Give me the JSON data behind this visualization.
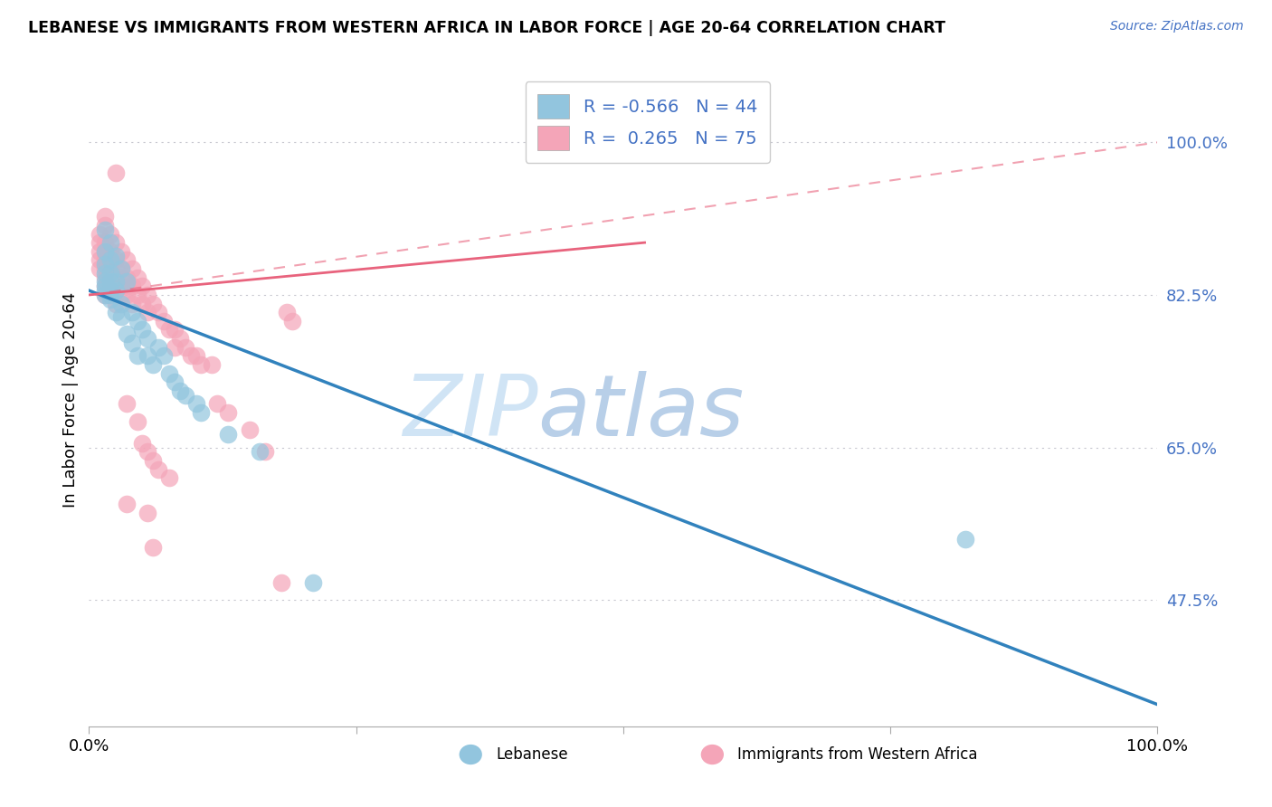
{
  "title": "LEBANESE VS IMMIGRANTS FROM WESTERN AFRICA IN LABOR FORCE | AGE 20-64 CORRELATION CHART",
  "source": "Source: ZipAtlas.com",
  "ylabel": "In Labor Force | Age 20-64",
  "xlim": [
    0,
    100
  ],
  "ylim": [
    33,
    108
  ],
  "yticks": [
    47.5,
    65.0,
    82.5,
    100.0
  ],
  "ytick_labels": [
    "47.5%",
    "65.0%",
    "82.5%",
    "100.0%"
  ],
  "xticks": [
    0,
    25,
    50,
    75,
    100
  ],
  "xtick_labels": [
    "0.0%",
    "",
    "",
    "",
    "100.0%"
  ],
  "legend_r_blue": "-0.566",
  "legend_n_blue": "44",
  "legend_r_pink": "0.265",
  "legend_n_pink": "75",
  "legend_label_blue": "Lebanese",
  "legend_label_pink": "Immigrants from Western Africa",
  "blue_color": "#92c5de",
  "pink_color": "#f4a5b8",
  "trend_blue_color": "#3182bd",
  "trend_pink_color": "#e8637d",
  "watermark_zip": "ZIP",
  "watermark_atlas": "atlas",
  "watermark_color": "#c6dbef",
  "background_color": "#ffffff",
  "blue_scatter": [
    [
      1.5,
      90.0
    ],
    [
      1.5,
      87.5
    ],
    [
      1.5,
      86.0
    ],
    [
      1.5,
      85.0
    ],
    [
      1.5,
      84.0
    ],
    [
      1.5,
      83.5
    ],
    [
      1.5,
      83.0
    ],
    [
      1.5,
      82.5
    ],
    [
      2.0,
      88.5
    ],
    [
      2.0,
      86.5
    ],
    [
      2.0,
      85.0
    ],
    [
      2.0,
      84.0
    ],
    [
      2.0,
      83.0
    ],
    [
      2.0,
      82.5
    ],
    [
      2.0,
      82.0
    ],
    [
      2.5,
      87.0
    ],
    [
      2.5,
      84.0
    ],
    [
      2.5,
      83.0
    ],
    [
      2.5,
      80.5
    ],
    [
      3.0,
      85.5
    ],
    [
      3.0,
      81.5
    ],
    [
      3.0,
      80.0
    ],
    [
      3.5,
      84.0
    ],
    [
      3.5,
      78.0
    ],
    [
      4.0,
      80.5
    ],
    [
      4.0,
      77.0
    ],
    [
      4.5,
      79.5
    ],
    [
      4.5,
      75.5
    ],
    [
      5.0,
      78.5
    ],
    [
      5.5,
      77.5
    ],
    [
      5.5,
      75.5
    ],
    [
      6.0,
      74.5
    ],
    [
      6.5,
      76.5
    ],
    [
      7.0,
      75.5
    ],
    [
      7.5,
      73.5
    ],
    [
      8.0,
      72.5
    ],
    [
      8.5,
      71.5
    ],
    [
      9.0,
      71.0
    ],
    [
      10.0,
      70.0
    ],
    [
      10.5,
      69.0
    ],
    [
      13.0,
      66.5
    ],
    [
      16.0,
      64.5
    ],
    [
      82.0,
      54.5
    ],
    [
      21.0,
      49.5
    ]
  ],
  "pink_scatter": [
    [
      1.0,
      89.5
    ],
    [
      1.0,
      88.5
    ],
    [
      1.0,
      87.5
    ],
    [
      1.0,
      86.5
    ],
    [
      1.0,
      85.5
    ],
    [
      1.5,
      91.5
    ],
    [
      1.5,
      90.5
    ],
    [
      1.5,
      88.5
    ],
    [
      1.5,
      87.5
    ],
    [
      1.5,
      86.5
    ],
    [
      1.5,
      85.5
    ],
    [
      1.5,
      84.5
    ],
    [
      1.5,
      83.5
    ],
    [
      1.5,
      82.5
    ],
    [
      2.0,
      89.5
    ],
    [
      2.0,
      87.5
    ],
    [
      2.0,
      86.5
    ],
    [
      2.0,
      85.5
    ],
    [
      2.0,
      84.5
    ],
    [
      2.0,
      83.5
    ],
    [
      2.0,
      82.5
    ],
    [
      2.5,
      88.5
    ],
    [
      2.5,
      86.5
    ],
    [
      2.5,
      85.5
    ],
    [
      2.5,
      84.5
    ],
    [
      2.5,
      83.5
    ],
    [
      2.5,
      81.5
    ],
    [
      3.0,
      87.5
    ],
    [
      3.0,
      85.5
    ],
    [
      3.0,
      84.5
    ],
    [
      3.0,
      83.5
    ],
    [
      3.0,
      82.5
    ],
    [
      3.5,
      86.5
    ],
    [
      3.5,
      84.5
    ],
    [
      3.5,
      83.5
    ],
    [
      3.5,
      82.5
    ],
    [
      4.0,
      85.5
    ],
    [
      4.0,
      83.5
    ],
    [
      4.0,
      81.5
    ],
    [
      4.5,
      84.5
    ],
    [
      4.5,
      82.5
    ],
    [
      5.0,
      83.5
    ],
    [
      5.0,
      81.5
    ],
    [
      5.5,
      82.5
    ],
    [
      5.5,
      80.5
    ],
    [
      6.0,
      81.5
    ],
    [
      6.5,
      80.5
    ],
    [
      7.0,
      79.5
    ],
    [
      7.5,
      78.5
    ],
    [
      8.0,
      78.5
    ],
    [
      8.0,
      76.5
    ],
    [
      8.5,
      77.5
    ],
    [
      9.0,
      76.5
    ],
    [
      9.5,
      75.5
    ],
    [
      10.0,
      75.5
    ],
    [
      10.5,
      74.5
    ],
    [
      11.5,
      74.5
    ],
    [
      2.5,
      96.5
    ],
    [
      18.5,
      80.5
    ],
    [
      19.0,
      79.5
    ],
    [
      3.5,
      70.0
    ],
    [
      4.5,
      68.0
    ],
    [
      5.0,
      65.5
    ],
    [
      5.5,
      64.5
    ],
    [
      6.0,
      63.5
    ],
    [
      6.5,
      62.5
    ],
    [
      7.5,
      61.5
    ],
    [
      3.5,
      58.5
    ],
    [
      5.5,
      57.5
    ],
    [
      6.0,
      53.5
    ],
    [
      12.0,
      70.0
    ],
    [
      13.0,
      69.0
    ],
    [
      15.0,
      67.0
    ],
    [
      16.5,
      64.5
    ],
    [
      18.0,
      49.5
    ]
  ],
  "blue_trend": [
    0,
    100,
    83.0,
    35.5
  ],
  "pink_solid_trend": [
    0,
    52,
    82.5,
    88.5
  ],
  "pink_dash_trend": [
    0,
    100,
    82.5,
    100.0
  ]
}
